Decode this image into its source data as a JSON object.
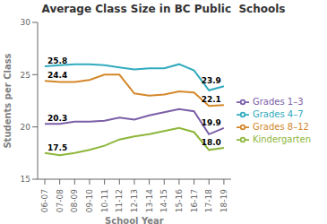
{
  "chart_data": {
    "type": "line",
    "title": "Average Class Size in BC Public  Schools",
    "x_label": "School Year",
    "y_label": "Students per Class",
    "categories": [
      "06-07",
      "07-08",
      "08-09",
      "09-10",
      "10-11",
      "11-12",
      "12-13",
      "13-14",
      "14-15",
      "15-16",
      "16-17",
      "17-18",
      "18-19"
    ],
    "series": [
      {
        "name": "Kindergarten",
        "color": "#8DB63A",
        "values": [
          17.5,
          17.3,
          17.5,
          17.8,
          18.2,
          18.8,
          19.1,
          19.3,
          19.6,
          19.9,
          19.5,
          17.8,
          18.0
        ]
      },
      {
        "name": "Grades 1–3",
        "color": "#7B5EA7",
        "values": [
          20.3,
          20.3,
          20.5,
          20.5,
          20.6,
          20.9,
          20.7,
          21.1,
          21.4,
          21.7,
          21.5,
          19.3,
          19.9
        ]
      },
      {
        "name": "Grades 4–7",
        "color": "#31ABBE",
        "values": [
          25.8,
          25.9,
          26.0,
          26.0,
          25.9,
          25.7,
          25.5,
          25.6,
          25.6,
          26.0,
          25.4,
          23.5,
          23.9
        ]
      },
      {
        "name": "Grades 8–12",
        "color": "#D4882A",
        "values": [
          24.4,
          24.3,
          24.3,
          24.5,
          25.0,
          25.0,
          23.2,
          23.0,
          23.1,
          23.4,
          23.3,
          22.0,
          22.1
        ]
      }
    ],
    "annotations": [
      {
        "text": "17.5",
        "x": "06-07",
        "y": 17.5
      },
      {
        "text": "20.3",
        "x": "06-07",
        "y": 20.3
      },
      {
        "text": "25.8",
        "x": "06-07",
        "y": 25.8
      },
      {
        "text": "24.4",
        "x": "06-07",
        "y": 24.4
      },
      {
        "text": "18.0",
        "x": "18-19",
        "y": 18.0
      },
      {
        "text": "19.9",
        "x": "18-19",
        "y": 19.9
      },
      {
        "text": "23.9",
        "x": "18-19",
        "y": 23.9
      },
      {
        "text": "22.1",
        "x": "18-19",
        "y": 22.1
      }
    ],
    "ylim": [
      15,
      30
    ],
    "yticks": [
      15,
      20,
      25,
      30
    ],
    "grid": false,
    "legend": "right"
  }
}
